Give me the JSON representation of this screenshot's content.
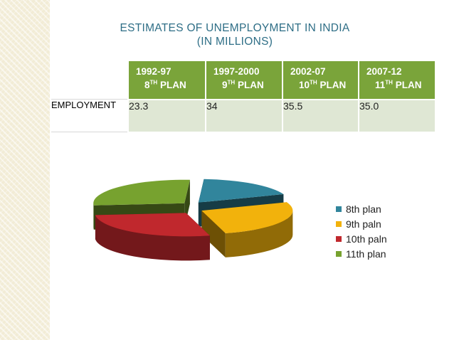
{
  "title": {
    "line1": "ESTIMATES OF UNEMPLOYMENT IN INDIA",
    "line2": "(IN MILLIONS)"
  },
  "table": {
    "columns": [
      {
        "years": "1992-97",
        "plan_num": "8",
        "plan_sup": "TH",
        "plan_word": "PLAN"
      },
      {
        "years": "1997-2000",
        "plan_num": "9",
        "plan_sup": "TH",
        "plan_word": "PLAN"
      },
      {
        "years": "2002-07",
        "plan_num": "10",
        "plan_sup": "TH",
        "plan_word": "PLAN"
      },
      {
        "years": "2007-12",
        "plan_num": "11",
        "plan_sup": "TH",
        "plan_word": "PLAN"
      }
    ],
    "row_label": "EMPLOYMENT",
    "values": [
      "23.3",
      "34",
      "35.5",
      "35.0"
    ]
  },
  "chart_data": {
    "type": "pie",
    "style": "3d-exploded",
    "labels": [
      "8th plan",
      "9th paln",
      "10th paln",
      "11th plan"
    ],
    "values": [
      23.3,
      34,
      35.5,
      35.0
    ],
    "colors": [
      "#31859c",
      "#f2b20c",
      "#c0282d",
      "#77a22f"
    ],
    "legend_position": "right"
  }
}
